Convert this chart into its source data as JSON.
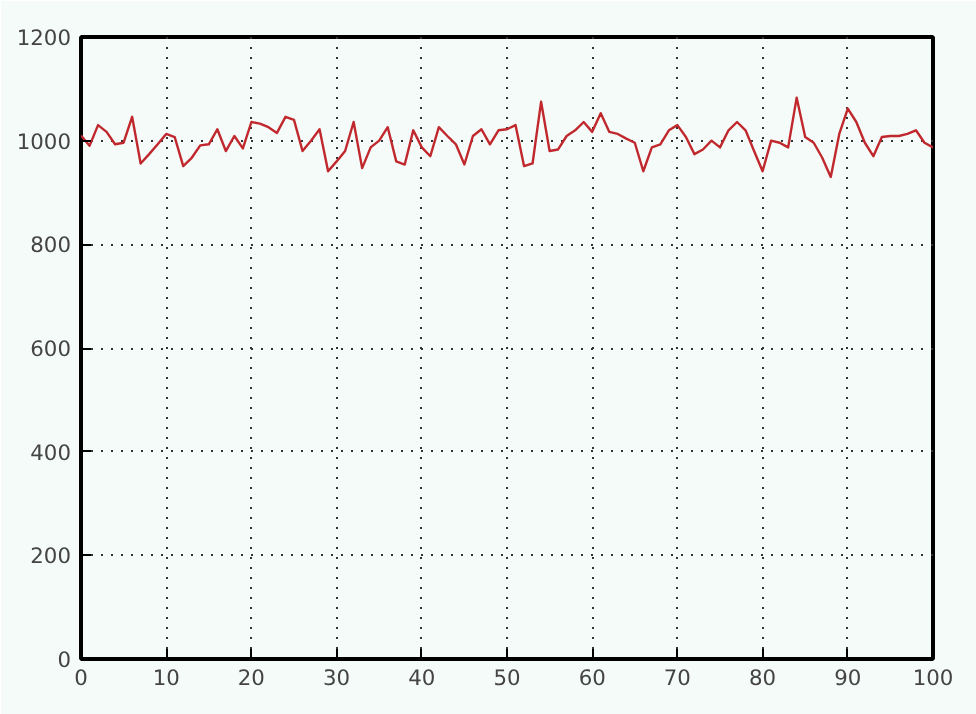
{
  "chart_data": {
    "type": "line",
    "x": [
      0,
      1,
      2,
      3,
      4,
      5,
      6,
      7,
      8,
      9,
      10,
      11,
      12,
      13,
      14,
      15,
      16,
      17,
      18,
      19,
      20,
      21,
      22,
      23,
      24,
      25,
      26,
      27,
      28,
      29,
      30,
      31,
      32,
      33,
      34,
      35,
      36,
      37,
      38,
      39,
      40,
      41,
      42,
      43,
      44,
      45,
      46,
      47,
      48,
      49,
      50,
      51,
      52,
      53,
      54,
      55,
      56,
      57,
      58,
      59,
      60,
      61,
      62,
      63,
      64,
      65,
      66,
      67,
      68,
      69,
      70,
      71,
      72,
      73,
      74,
      75,
      76,
      77,
      78,
      79,
      80,
      81,
      82,
      83,
      84,
      85,
      86,
      87,
      88,
      89,
      90,
      91,
      92,
      93,
      94,
      95,
      96,
      97,
      98,
      99,
      100
    ],
    "series": [
      {
        "color": "#c0282d",
        "values": [
          1010,
          990,
          1030,
          1017,
          993,
          996,
          1046,
          956,
          974,
          993,
          1013,
          1007,
          951,
          967,
          991,
          993,
          1022,
          980,
          1009,
          985,
          1036,
          1033,
          1026,
          1015,
          1046,
          1040,
          980,
          1000,
          1022,
          941,
          960,
          980,
          1036,
          947,
          987,
          1000,
          1026,
          960,
          954,
          1020,
          987,
          970,
          1026,
          1009,
          993,
          954,
          1009,
          1022,
          993,
          1020,
          1022,
          1030,
          951,
          956,
          1075,
          980,
          983,
          1009,
          1020,
          1036,
          1017,
          1053,
          1017,
          1013,
          1004,
          996,
          941,
          987,
          993,
          1020,
          1030,
          1007,
          974,
          983,
          1000,
          987,
          1020,
          1036,
          1020,
          980,
          941,
          1000,
          996,
          987,
          1083,
          1007,
          996,
          967,
          930,
          1013,
          1062,
          1036,
          996,
          970,
          1007,
          1009,
          1009,
          1013,
          1020,
          996,
          987
        ]
      }
    ],
    "xlim": [
      0,
      100
    ],
    "ylim": [
      0,
      1200
    ],
    "xticks": [
      0,
      10,
      20,
      30,
      40,
      50,
      60,
      70,
      80,
      90,
      100
    ],
    "yticks": [
      0,
      200,
      400,
      600,
      800,
      1000,
      1200
    ],
    "grid": true,
    "marker": "none",
    "line_style": "solid"
  }
}
